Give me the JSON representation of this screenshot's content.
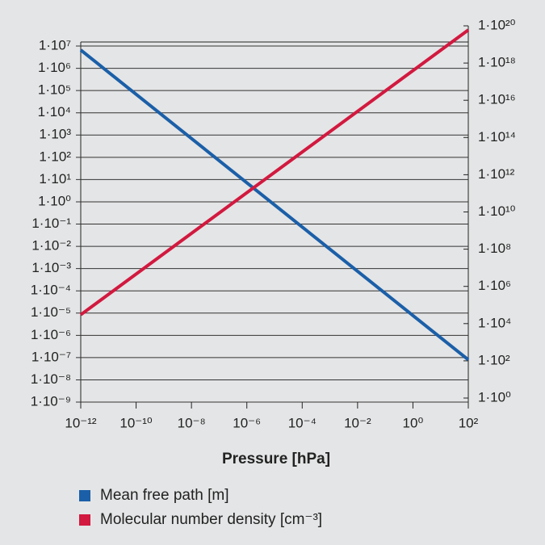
{
  "chart_data": {
    "type": "line",
    "xlabel": "Pressure [hPa]",
    "x": [
      1e-12,
      100
    ],
    "series": [
      {
        "name": "Mean free path [m]",
        "color": "#1b5fa8",
        "values": [
          6600000.0,
          8e-08
        ]
      },
      {
        "name": "Molecular number density [cm⁻³]",
        "color": "#d2193f",
        "values": [
          30000.0,
          6e+19
        ],
        "axis": "y2"
      }
    ],
    "xlog": true,
    "ylog": true,
    "y2log": true,
    "grid": true,
    "xlim": [
      1e-12,
      100
    ],
    "xticks": [
      {
        "value": 1e-12,
        "label": "10⁻¹²"
      },
      {
        "value": 1e-10,
        "label": "10⁻¹⁰"
      },
      {
        "value": 1e-08,
        "label": "10⁻⁸"
      },
      {
        "value": 1e-06,
        "label": "10⁻⁶"
      },
      {
        "value": 0.0001,
        "label": "10⁻⁴"
      },
      {
        "value": 0.01,
        "label": "10⁻²"
      },
      {
        "value": 1,
        "label": "10⁰"
      },
      {
        "value": 100,
        "label": "10²"
      }
    ],
    "ylim": [
      1e-09,
      10000000.0
    ],
    "yticks": [
      {
        "value": 10000000.0,
        "label": "1·10⁷"
      },
      {
        "value": 1000000.0,
        "label": "1·10⁶"
      },
      {
        "value": 100000.0,
        "label": "1·10⁵"
      },
      {
        "value": 10000.0,
        "label": "1·10⁴"
      },
      {
        "value": 1000.0,
        "label": "1·10³"
      },
      {
        "value": 100,
        "label": "1·10²"
      },
      {
        "value": 10,
        "label": "1·10¹"
      },
      {
        "value": 1,
        "label": "1·10⁰"
      },
      {
        "value": 0.1,
        "label": "1·10⁻¹"
      },
      {
        "value": 0.01,
        "label": "1·10⁻²"
      },
      {
        "value": 0.001,
        "label": "1·10⁻³"
      },
      {
        "value": 0.0001,
        "label": "1·10⁻⁴"
      },
      {
        "value": 1e-05,
        "label": "1·10⁻⁵"
      },
      {
        "value": 1e-06,
        "label": "1·10⁻⁶"
      },
      {
        "value": 1e-07,
        "label": "1·10⁻⁷"
      },
      {
        "value": 1e-08,
        "label": "1·10⁻⁸"
      },
      {
        "value": 1e-09,
        "label": "1·10⁻⁹"
      }
    ],
    "y2lim": [
      1,
      1e+20
    ],
    "y2ticks": [
      {
        "value": 1e+20,
        "label": "1·10²⁰"
      },
      {
        "value": 1e+18,
        "label": "1·10¹⁸"
      },
      {
        "value": 1e+16,
        "label": "1·10¹⁶"
      },
      {
        "value": 100000000000000.0,
        "label": "1·10¹⁴"
      },
      {
        "value": 1000000000000.0,
        "label": "1·10¹²"
      },
      {
        "value": 10000000000.0,
        "label": "1·10¹⁰"
      },
      {
        "value": 100000000.0,
        "label": "1·10⁸"
      },
      {
        "value": 1000000.0,
        "label": "1·10⁶"
      },
      {
        "value": 10000.0,
        "label": "1·10⁴"
      },
      {
        "value": 100,
        "label": "1·10²"
      },
      {
        "value": 1,
        "label": "1·10⁰"
      }
    ]
  }
}
